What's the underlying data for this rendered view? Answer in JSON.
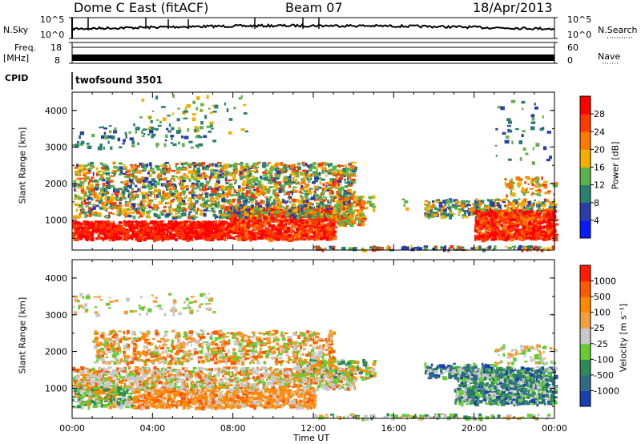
{
  "header": {
    "radar_name": "Dome C East (fitACF)",
    "beam": "Beam 07",
    "date": "18/Apr/2013"
  },
  "strips": {
    "nsky_label": "N.Sky",
    "nsky_ticks": [
      "10^5",
      "10^0"
    ],
    "nsearch_label": "N.Search",
    "nsearch_ticks": [
      "10^5",
      "10^0"
    ],
    "freq_label": "Freq.",
    "freq_unit": "[MHz]",
    "freq_ticks": [
      "18",
      "8"
    ],
    "nave_label": "Nave",
    "nave_ticks": [
      "60",
      "0"
    ],
    "cpid_label": "CPID",
    "cpid_value": "twofsound 3501"
  },
  "chart_data": [
    {
      "type": "heatmap",
      "name": "power",
      "xlabel": "",
      "ylabel": "Slant Range [km]",
      "x_ticks": [],
      "y_ticks": [
        "4000",
        "3000",
        "2000",
        "1000"
      ],
      "xlim": [
        0,
        24
      ],
      "ylim": [
        180,
        4500
      ],
      "colorbar": {
        "label": "Power [dB]",
        "ticks": [
          "28",
          "24",
          "20",
          "16",
          "12",
          "8",
          "4"
        ],
        "colors": [
          "#0a1aff",
          "#2a3ea6",
          "#2a7f6f",
          "#5fb24a",
          "#f3b000",
          "#ff7a00",
          "#ff3a00",
          "#ff0000"
        ]
      }
    },
    {
      "type": "heatmap",
      "name": "velocity",
      "xlabel": "Time UT",
      "ylabel": "Slant Range [km]",
      "x_ticks": [
        "00:00",
        "04:00",
        "08:00",
        "12:00",
        "16:00",
        "20:00",
        "00:00"
      ],
      "y_ticks": [
        "4000",
        "3000",
        "2000",
        "1000"
      ],
      "xlim": [
        0,
        24
      ],
      "ylim": [
        180,
        4500
      ],
      "colorbar": {
        "label": "Velocity [m s⁻¹]",
        "ticks": [
          "1000",
          "500",
          "100",
          "25",
          "-25",
          "-100",
          "-500",
          "-1000"
        ],
        "colors": [
          "#1c3fb0",
          "#2f6b86",
          "#2f8a5a",
          "#66cc33",
          "#c8c8c8",
          "#f0a040",
          "#ff8a00",
          "#ff5a00",
          "#ff1a00"
        ]
      }
    }
  ]
}
